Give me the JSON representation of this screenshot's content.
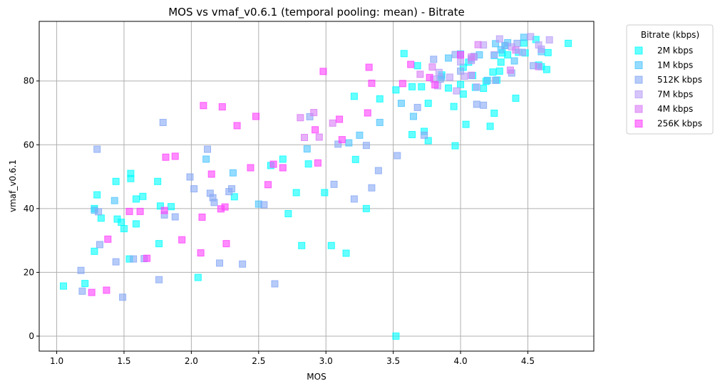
{
  "chart_data": {
    "type": "scatter",
    "title": "MOS vs vmaf_v0.6.1 (temporal pooling: mean) - Bitrate",
    "xlabel": "MOS",
    "ylabel": "vmaf_v0.6.1",
    "xlim": [
      0.87,
      4.99
    ],
    "ylim": [
      -4.7,
      98.7
    ],
    "xticks": [
      "1.0",
      "1.5",
      "2.0",
      "2.5",
      "3.0",
      "3.5",
      "4.0",
      "4.5"
    ],
    "yticks": [
      "0",
      "20",
      "40",
      "60",
      "80"
    ],
    "grid": true,
    "legend_title": "Bitrate (kbps)",
    "legend_position": "outside-right",
    "marker": "square",
    "series": [
      {
        "name": "2M kbps",
        "color": "#00FFFF",
        "points": [
          [
            1.05,
            15.7
          ],
          [
            1.21,
            16.5
          ],
          [
            1.28,
            40.0
          ],
          [
            1.28,
            26.6
          ],
          [
            1.3,
            44.3
          ],
          [
            1.33,
            37.0
          ],
          [
            1.44,
            48.5
          ],
          [
            1.45,
            36.7
          ],
          [
            1.48,
            35.7
          ],
          [
            1.5,
            33.7
          ],
          [
            1.54,
            24.2
          ],
          [
            1.55,
            51.0
          ],
          [
            1.55,
            49.4
          ],
          [
            1.59,
            35.2
          ],
          [
            1.59,
            43.0
          ],
          [
            1.64,
            43.8
          ],
          [
            1.75,
            48.5
          ],
          [
            1.76,
            29.0
          ],
          [
            1.77,
            40.8
          ],
          [
            1.85,
            40.6
          ],
          [
            2.05,
            18.4
          ],
          [
            2.32,
            43.7
          ],
          [
            2.59,
            53.5
          ],
          [
            2.68,
            55.5
          ],
          [
            2.72,
            38.4
          ],
          [
            2.78,
            45.0
          ],
          [
            2.82,
            28.4
          ],
          [
            2.87,
            54.0
          ],
          [
            2.99,
            45.0
          ],
          [
            3.04,
            28.4
          ],
          [
            3.15,
            26.0
          ],
          [
            3.21,
            75.2
          ],
          [
            3.22,
            55.4
          ],
          [
            3.3,
            40.0
          ],
          [
            3.4,
            74.4
          ],
          [
            3.52,
            77.2
          ],
          [
            3.52,
            0.0
          ],
          [
            3.58,
            88.6
          ],
          [
            3.64,
            78.2
          ],
          [
            3.64,
            63.2
          ],
          [
            3.68,
            84.8
          ],
          [
            3.71,
            78.2
          ],
          [
            3.73,
            64.2
          ],
          [
            3.76,
            73.0
          ],
          [
            3.76,
            61.3
          ],
          [
            3.86,
            81.9
          ],
          [
            3.91,
            77.8
          ],
          [
            3.95,
            72.0
          ],
          [
            3.96,
            59.7
          ],
          [
            4.0,
            78.9
          ],
          [
            4.02,
            75.9
          ],
          [
            4.02,
            84.3
          ],
          [
            4.04,
            66.4
          ],
          [
            4.06,
            85.9
          ],
          [
            4.09,
            81.7
          ],
          [
            4.11,
            78.0
          ],
          [
            4.17,
            77.7
          ],
          [
            4.19,
            79.9
          ],
          [
            4.22,
            65.8
          ],
          [
            4.24,
            82.8
          ],
          [
            4.25,
            88.0
          ],
          [
            4.25,
            69.9
          ],
          [
            4.27,
            80.3
          ],
          [
            4.29,
            83.1
          ],
          [
            4.3,
            85.9
          ],
          [
            4.31,
            88.8
          ],
          [
            4.33,
            91.1
          ],
          [
            4.35,
            88.2
          ],
          [
            4.41,
            74.6
          ],
          [
            4.43,
            89.0
          ],
          [
            4.47,
            91.9
          ],
          [
            4.48,
            88.8
          ],
          [
            4.56,
            93.0
          ],
          [
            4.58,
            85.0
          ],
          [
            4.6,
            84.5
          ],
          [
            4.64,
            83.6
          ],
          [
            4.65,
            88.9
          ],
          [
            4.8,
            91.8
          ]
        ]
      },
      {
        "name": "1M kbps",
        "color": "#4DC4FF",
        "points": [
          [
            1.28,
            39.5
          ],
          [
            1.43,
            42.5
          ],
          [
            2.11,
            55.5
          ],
          [
            2.31,
            51.2
          ],
          [
            2.5,
            41.4
          ],
          [
            2.86,
            58.7
          ],
          [
            3.17,
            60.6
          ],
          [
            3.25,
            63.0
          ],
          [
            3.4,
            67.0
          ],
          [
            3.56,
            73.0
          ],
          [
            3.65,
            68.9
          ],
          [
            3.86,
            81.3
          ],
          [
            3.91,
            87.2
          ],
          [
            4.0,
            88.5
          ],
          [
            4.08,
            86.9
          ],
          [
            4.14,
            88.2
          ],
          [
            4.2,
            80.2
          ],
          [
            4.26,
            91.7
          ],
          [
            4.3,
            89.8
          ],
          [
            4.35,
            92.0
          ],
          [
            4.4,
            86.3
          ],
          [
            4.47,
            93.7
          ],
          [
            4.6,
            89.2
          ]
        ]
      },
      {
        "name": "512K kbps",
        "color": "#87A8F5",
        "points": [
          [
            1.18,
            20.6
          ],
          [
            1.19,
            14.1
          ],
          [
            1.3,
            58.6
          ],
          [
            1.31,
            39.0
          ],
          [
            1.32,
            28.7
          ],
          [
            1.44,
            23.3
          ],
          [
            1.49,
            12.2
          ],
          [
            1.57,
            24.2
          ],
          [
            1.65,
            24.3
          ],
          [
            1.76,
            17.7
          ],
          [
            1.79,
            67.0
          ],
          [
            1.8,
            38.0
          ],
          [
            1.88,
            37.4
          ],
          [
            1.99,
            49.9
          ],
          [
            2.02,
            46.2
          ],
          [
            2.12,
            58.6
          ],
          [
            2.14,
            44.8
          ],
          [
            2.16,
            43.4
          ],
          [
            2.17,
            41.9
          ],
          [
            2.21,
            22.9
          ],
          [
            2.28,
            45.3
          ],
          [
            2.3,
            46.2
          ],
          [
            2.38,
            22.6
          ],
          [
            2.54,
            41.2
          ],
          [
            2.62,
            16.4
          ],
          [
            2.88,
            68.8
          ],
          [
            3.06,
            47.6
          ],
          [
            3.09,
            60.2
          ],
          [
            3.21,
            43.0
          ],
          [
            3.3,
            59.8
          ],
          [
            3.34,
            46.5
          ],
          [
            3.39,
            51.9
          ],
          [
            3.53,
            56.6
          ],
          [
            3.68,
            71.7
          ],
          [
            3.73,
            63.0
          ],
          [
            3.8,
            86.8
          ],
          [
            3.85,
            80.6
          ],
          [
            3.96,
            88.3
          ],
          [
            4.0,
            83.1
          ],
          [
            4.1,
            87.7
          ],
          [
            4.12,
            72.7
          ],
          [
            4.17,
            72.4
          ],
          [
            4.26,
            80.2
          ],
          [
            4.33,
            91.1
          ],
          [
            4.38,
            82.5
          ],
          [
            4.42,
            91.8
          ],
          [
            4.54,
            84.8
          ]
        ]
      },
      {
        "name": "7M kbps",
        "color": "#B99EF7",
        "points": [
          [
            3.8,
            80.6
          ],
          [
            3.83,
            78.5
          ],
          [
            3.84,
            82.7
          ],
          [
            3.92,
            81.2
          ],
          [
            3.97,
            76.9
          ],
          [
            4.0,
            86.0
          ],
          [
            4.03,
            81.5
          ],
          [
            4.08,
            86.4
          ],
          [
            4.1,
            87.5
          ],
          [
            4.12,
            78.1
          ],
          [
            4.17,
            91.3
          ],
          [
            4.25,
            88.2
          ],
          [
            4.29,
            93.2
          ],
          [
            4.38,
            90.7
          ],
          [
            4.46,
            89.0
          ],
          [
            4.52,
            93.9
          ],
          [
            4.58,
            91.3
          ],
          [
            4.6,
            90.0
          ],
          [
            4.66,
            92.9
          ]
        ]
      },
      {
        "name": "4M kbps",
        "color": "#D97CF5",
        "points": [
          [
            2.81,
            68.5
          ],
          [
            2.84,
            62.3
          ],
          [
            2.91,
            70.1
          ],
          [
            2.95,
            62.4
          ],
          [
            3.05,
            66.8
          ],
          [
            3.7,
            82.1
          ],
          [
            3.79,
            84.4
          ],
          [
            4.08,
            81.8
          ],
          [
            4.08,
            87.5
          ],
          [
            4.13,
            91.4
          ],
          [
            4.37,
            83.4
          ],
          [
            4.41,
            89.7
          ],
          [
            4.58,
            84.5
          ]
        ]
      },
      {
        "name": "256K kbps",
        "color": "#FF40FF",
        "points": [
          [
            1.26,
            13.7
          ],
          [
            1.37,
            14.4
          ],
          [
            1.38,
            30.4
          ],
          [
            1.54,
            39.1
          ],
          [
            1.62,
            39.1
          ],
          [
            1.67,
            24.4
          ],
          [
            1.8,
            39.4
          ],
          [
            1.81,
            56.1
          ],
          [
            1.88,
            56.4
          ],
          [
            1.93,
            30.2
          ],
          [
            2.07,
            26.1
          ],
          [
            2.08,
            37.3
          ],
          [
            2.09,
            72.3
          ],
          [
            2.15,
            50.8
          ],
          [
            2.22,
            39.9
          ],
          [
            2.23,
            71.9
          ],
          [
            2.25,
            40.5
          ],
          [
            2.26,
            29.0
          ],
          [
            2.34,
            66.0
          ],
          [
            2.44,
            52.8
          ],
          [
            2.48,
            68.9
          ],
          [
            2.57,
            47.5
          ],
          [
            2.61,
            53.9
          ],
          [
            2.68,
            52.8
          ],
          [
            2.92,
            64.7
          ],
          [
            2.94,
            54.3
          ],
          [
            2.98,
            83.0
          ],
          [
            3.1,
            68.0
          ],
          [
            3.12,
            61.6
          ],
          [
            3.31,
            70.0
          ],
          [
            3.32,
            84.3
          ],
          [
            3.34,
            79.3
          ],
          [
            3.57,
            79.2
          ],
          [
            3.63,
            85.2
          ],
          [
            3.77,
            81.1
          ],
          [
            3.81,
            78.8
          ],
          [
            4.0,
            88.2
          ]
        ]
      }
    ]
  }
}
